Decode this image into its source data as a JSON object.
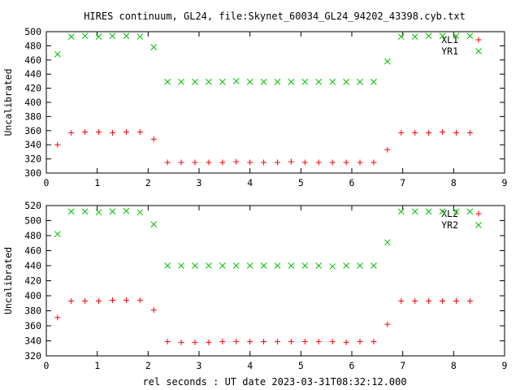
{
  "title": "HIRES continuum, GL24, file:Skynet_60034_GL24_94202_43398.cyb.txt",
  "xlabel": "rel seconds : UT date 2023-03-31T08:32:12.000",
  "colors": {
    "series1": "#ff0000",
    "series2": "#00c000",
    "axes": "#000000"
  },
  "chart_data": [
    {
      "type": "scatter",
      "ylabel": "Uncalibrated",
      "xlim": [
        0,
        9
      ],
      "ylim": [
        300,
        500
      ],
      "xticks": [
        0,
        1,
        2,
        3,
        4,
        5,
        6,
        7,
        8,
        9
      ],
      "yticks": [
        300,
        320,
        340,
        360,
        380,
        400,
        420,
        440,
        460,
        480,
        500
      ],
      "legend_position": "top-right",
      "grid": false,
      "x": [
        0.22,
        0.49,
        0.76,
        1.03,
        1.3,
        1.57,
        1.84,
        2.11,
        2.38,
        2.65,
        2.92,
        3.19,
        3.46,
        3.73,
        4.0,
        4.27,
        4.54,
        4.81,
        5.08,
        5.35,
        5.62,
        5.89,
        6.16,
        6.43,
        6.7,
        6.97,
        7.24,
        7.51,
        7.78,
        8.05,
        8.32
      ],
      "series": [
        {
          "name": "XL1",
          "marker": "plus",
          "values": [
            340,
            357,
            358,
            358,
            357,
            358,
            358,
            348,
            315,
            315,
            315,
            315,
            315,
            316,
            315,
            315,
            315,
            316,
            315,
            315,
            315,
            315,
            315,
            315,
            333,
            357,
            357,
            357,
            358,
            357,
            357
          ]
        },
        {
          "name": "YR1",
          "marker": "cross",
          "values": [
            468,
            493,
            494,
            493,
            494,
            494,
            493,
            478,
            429,
            429,
            429,
            429,
            429,
            430,
            429,
            429,
            429,
            429,
            429,
            429,
            429,
            429,
            429,
            429,
            458,
            493,
            493,
            494,
            494,
            494,
            494
          ]
        }
      ]
    },
    {
      "type": "scatter",
      "ylabel": "Uncalibrated",
      "xlim": [
        0,
        9
      ],
      "ylim": [
        320,
        520
      ],
      "xticks": [
        0,
        1,
        2,
        3,
        4,
        5,
        6,
        7,
        8,
        9
      ],
      "yticks": [
        320,
        340,
        360,
        380,
        400,
        420,
        440,
        460,
        480,
        500,
        520
      ],
      "legend_position": "top-right",
      "grid": false,
      "x": [
        0.22,
        0.49,
        0.76,
        1.03,
        1.3,
        1.57,
        1.84,
        2.11,
        2.38,
        2.65,
        2.92,
        3.19,
        3.46,
        3.73,
        4.0,
        4.27,
        4.54,
        4.81,
        5.08,
        5.35,
        5.62,
        5.89,
        6.16,
        6.43,
        6.7,
        6.97,
        7.24,
        7.51,
        7.78,
        8.05,
        8.32
      ],
      "series": [
        {
          "name": "XL2",
          "marker": "plus",
          "values": [
            371,
            393,
            393,
            393,
            394,
            394,
            394,
            381,
            339,
            338,
            338,
            338,
            339,
            339,
            339,
            339,
            339,
            339,
            339,
            339,
            339,
            338,
            339,
            339,
            362,
            393,
            393,
            393,
            393,
            393,
            393
          ]
        },
        {
          "name": "YR2",
          "marker": "cross",
          "values": [
            482,
            512,
            512,
            511,
            512,
            513,
            511,
            495,
            440,
            440,
            440,
            440,
            440,
            440,
            440,
            440,
            440,
            440,
            440,
            440,
            439,
            440,
            440,
            440,
            471,
            512,
            512,
            512,
            512,
            512,
            512
          ]
        }
      ]
    }
  ]
}
